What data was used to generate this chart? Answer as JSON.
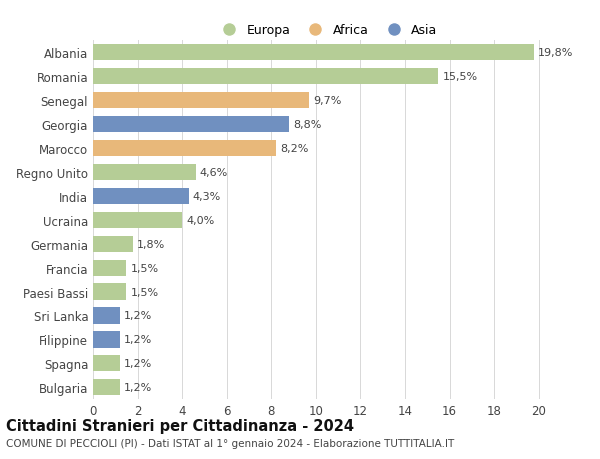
{
  "categories": [
    "Bulgaria",
    "Spagna",
    "Filippine",
    "Sri Lanka",
    "Paesi Bassi",
    "Francia",
    "Germania",
    "Ucraina",
    "India",
    "Regno Unito",
    "Marocco",
    "Georgia",
    "Senegal",
    "Romania",
    "Albania"
  ],
  "values": [
    1.2,
    1.2,
    1.2,
    1.2,
    1.5,
    1.5,
    1.8,
    4.0,
    4.3,
    4.6,
    8.2,
    8.8,
    9.7,
    15.5,
    19.8
  ],
  "colors": [
    "#b5cd96",
    "#b5cd96",
    "#7090c0",
    "#7090c0",
    "#b5cd96",
    "#b5cd96",
    "#b5cd96",
    "#b5cd96",
    "#7090c0",
    "#b5cd96",
    "#e8b87a",
    "#7090c0",
    "#e8b87a",
    "#b5cd96",
    "#b5cd96"
  ],
  "labels": [
    "1,2%",
    "1,2%",
    "1,2%",
    "1,2%",
    "1,5%",
    "1,5%",
    "1,8%",
    "4,0%",
    "4,3%",
    "4,6%",
    "8,2%",
    "8,8%",
    "9,7%",
    "15,5%",
    "19,8%"
  ],
  "legend_labels": [
    "Europa",
    "Africa",
    "Asia"
  ],
  "legend_colors": [
    "#b5cd96",
    "#e8b87a",
    "#7090c0"
  ],
  "title": "Cittadini Stranieri per Cittadinanza - 2024",
  "subtitle": "COMUNE DI PECCIOLI (PI) - Dati ISTAT al 1° gennaio 2024 - Elaborazione TUTTITALIA.IT",
  "xlim": [
    0,
    21
  ],
  "xticks": [
    0,
    2,
    4,
    6,
    8,
    10,
    12,
    14,
    16,
    18,
    20
  ],
  "background_color": "#ffffff",
  "grid_color": "#d8d8d8",
  "bar_height": 0.68,
  "title_fontsize": 10.5,
  "subtitle_fontsize": 7.5,
  "tick_fontsize": 8.5,
  "label_fontsize": 8.0,
  "legend_fontsize": 9.0
}
